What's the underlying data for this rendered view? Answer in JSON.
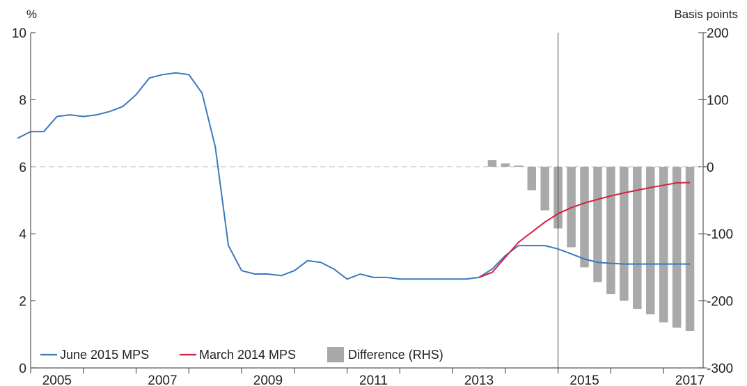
{
  "chart_data": {
    "type": "line",
    "title": "",
    "left_axis": {
      "label": "%",
      "range": [
        0,
        10
      ],
      "ticks": [
        0,
        2,
        4,
        6,
        8,
        10
      ]
    },
    "right_axis": {
      "label": "Basis points",
      "range": [
        -300,
        200
      ],
      "ticks": [
        -300,
        -200,
        -100,
        0,
        100,
        200
      ]
    },
    "x_axis": {
      "range": [
        2005,
        2017.75
      ],
      "tick_labels": [
        "2005",
        "2007",
        "2009",
        "2011",
        "2013",
        "2015",
        "2017"
      ],
      "tick_values": [
        2005,
        2007,
        2009,
        2011,
        2013,
        2015,
        2017
      ]
    },
    "reference_line": {
      "x": 2015
    },
    "zero_line_right_axis": 0,
    "colors": {
      "june": "#3a78c0",
      "march": "#d6203f",
      "bars": "#a9a9a9",
      "axis": "#555555",
      "zero_line": "#cccccc"
    },
    "legend_position": "bottom-left",
    "series": [
      {
        "name": "June 2015 MPS",
        "axis": "left",
        "kind": "line",
        "x": [
          2004.75,
          2005.0,
          2005.25,
          2005.5,
          2005.75,
          2006.0,
          2006.25,
          2006.5,
          2006.75,
          2007.0,
          2007.25,
          2007.5,
          2007.75,
          2008.0,
          2008.25,
          2008.5,
          2008.75,
          2009.0,
          2009.25,
          2009.5,
          2009.75,
          2010.0,
          2010.25,
          2010.5,
          2010.75,
          2011.0,
          2011.25,
          2011.5,
          2011.75,
          2012.0,
          2012.25,
          2012.5,
          2012.75,
          2013.0,
          2013.25,
          2013.5,
          2013.75,
          2014.0,
          2014.25,
          2014.5,
          2014.75,
          2015.0,
          2015.25,
          2015.5,
          2015.75,
          2016.0,
          2016.25,
          2016.5,
          2016.75,
          2017.0,
          2017.25,
          2017.5
        ],
        "values": [
          6.85,
          7.05,
          7.05,
          7.5,
          7.55,
          7.5,
          7.55,
          7.65,
          7.8,
          8.15,
          8.65,
          8.75,
          8.8,
          8.75,
          8.2,
          6.6,
          3.65,
          2.9,
          2.8,
          2.8,
          2.75,
          2.9,
          3.2,
          3.15,
          2.95,
          2.65,
          2.8,
          2.7,
          2.7,
          2.65,
          2.65,
          2.65,
          2.65,
          2.65,
          2.65,
          2.7,
          2.95,
          3.35,
          3.65,
          3.65,
          3.65,
          3.55,
          3.4,
          3.25,
          3.15,
          3.12,
          3.1,
          3.1,
          3.1,
          3.1,
          3.1,
          3.1
        ]
      },
      {
        "name": "March 2014 MPS",
        "axis": "left",
        "kind": "line",
        "x": [
          2013.5,
          2013.75,
          2014.0,
          2014.25,
          2014.5,
          2014.75,
          2015.0,
          2015.25,
          2015.5,
          2015.75,
          2016.0,
          2016.25,
          2016.5,
          2016.75,
          2017.0,
          2017.25,
          2017.5
        ],
        "values": [
          2.7,
          2.85,
          3.3,
          3.75,
          4.05,
          4.35,
          4.6,
          4.78,
          4.92,
          5.03,
          5.13,
          5.22,
          5.3,
          5.38,
          5.45,
          5.52,
          5.53
        ]
      },
      {
        "name": "Difference (RHS)",
        "axis": "right",
        "kind": "bar",
        "x": [
          2013.75,
          2014.0,
          2014.25,
          2014.5,
          2014.75,
          2015.0,
          2015.25,
          2015.5,
          2015.75,
          2016.0,
          2016.25,
          2016.5,
          2016.75,
          2017.0,
          2017.25,
          2017.5
        ],
        "values": [
          10,
          5,
          2,
          -35,
          -65,
          -92,
          -120,
          -150,
          -172,
          -190,
          -200,
          -212,
          -220,
          -232,
          -240,
          -245
        ]
      }
    ]
  }
}
